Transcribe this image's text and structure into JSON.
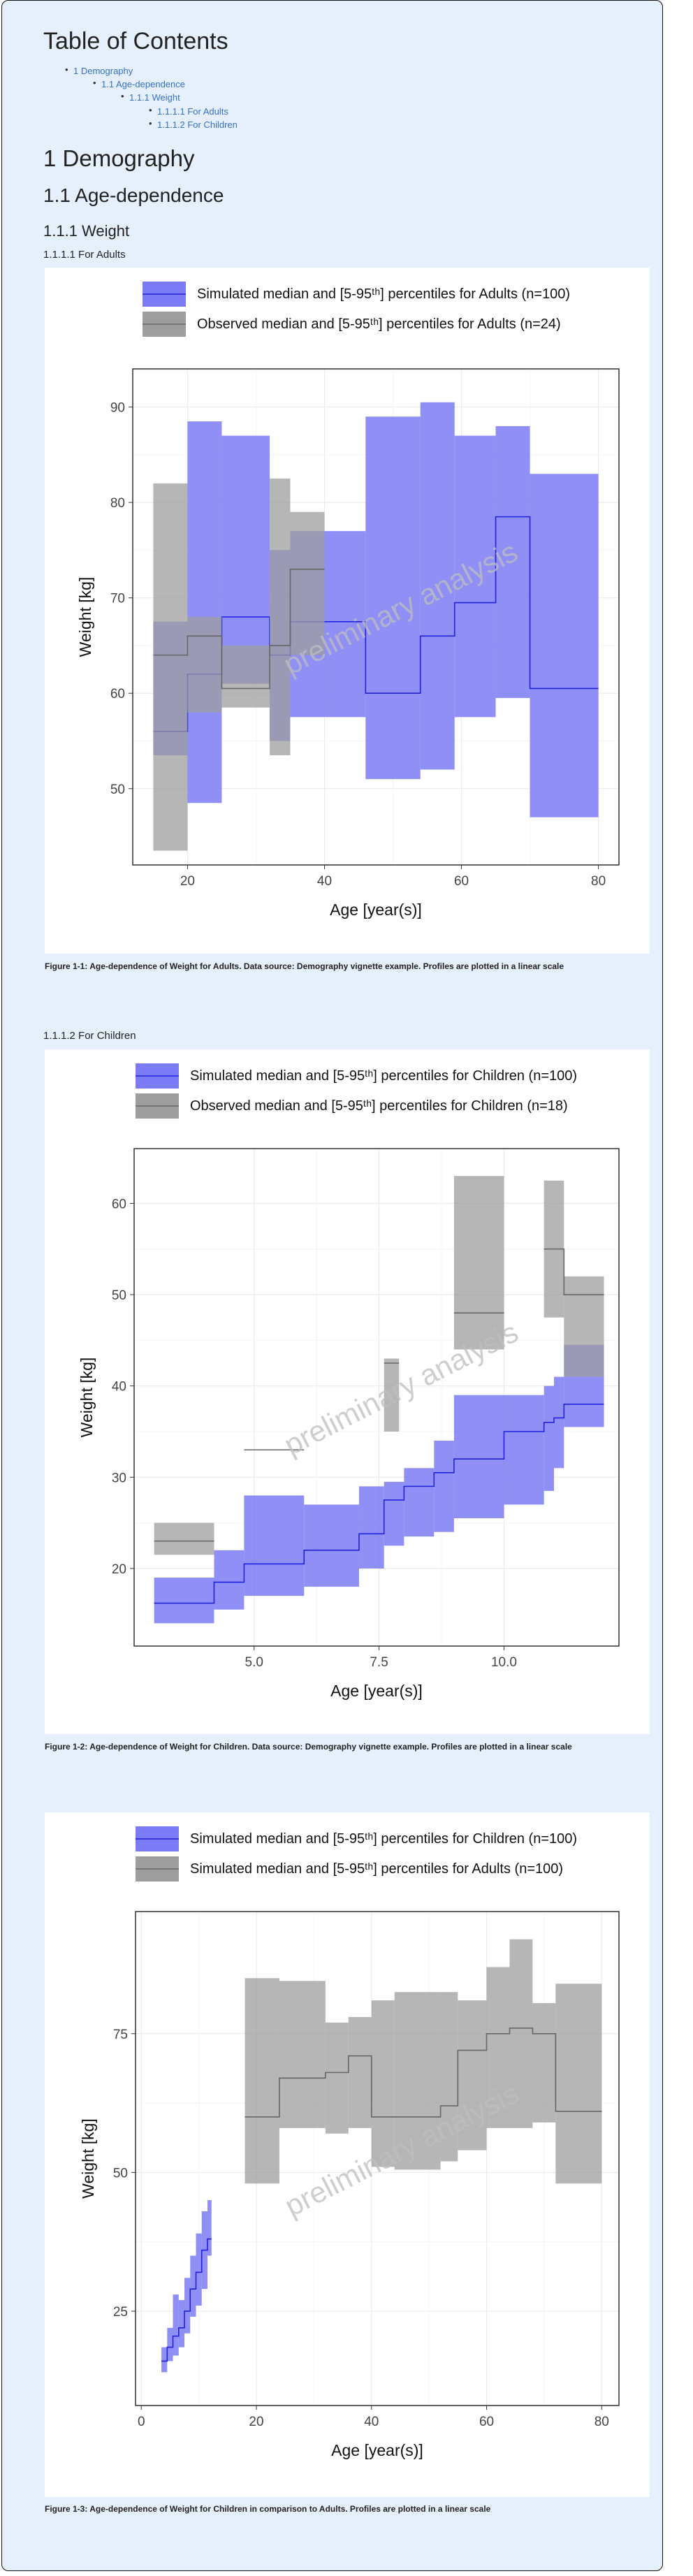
{
  "toc": {
    "title": "Table of Contents",
    "items": [
      "1 Demography",
      "1.1 Age-dependence",
      "1.1.1 Weight",
      "1.1.1.1 For Adults",
      "1.1.1.2 For Children"
    ]
  },
  "headings": {
    "h1": "1 Demography",
    "h2": "1.1 Age-dependence",
    "h3": "1.1.1 Weight",
    "h4_adults": "1.1.1.1 For Adults",
    "h4_children": "1.1.1.2 For Children"
  },
  "captions": [
    "Figure 1-1: Age-dependence of Weight for Adults. Data source: Demography vignette example. Profiles are plotted in a linear scale",
    "Figure 1-2: Age-dependence of Weight for Children. Data source: Demography vignette example. Profiles are plotted in a linear scale",
    "Figure 1-3: Age-dependence of Weight for Children in comparison to Adults. Profiles are plotted in a linear scale"
  ],
  "colors": {
    "simulated": "#7b7bf5",
    "simulated_line": "#2222dd",
    "observed": "#9e9e9e",
    "observed_line": "#666666"
  },
  "chart_data": [
    {
      "type": "area",
      "watermark": "preliminary analysis",
      "xlabel": "Age [year(s)]",
      "ylabel": "Weight [kg]",
      "xlim": [
        12,
        83
      ],
      "ylim": [
        42,
        94
      ],
      "xticks": [
        20,
        40,
        60,
        80
      ],
      "yticks": [
        50,
        60,
        70,
        80,
        90
      ],
      "grid": true,
      "legend_position": "top",
      "series": [
        {
          "name": "Simulated median and [5-95ᵗʰ] percentiles for Adults (n=100)",
          "kind": "simulated",
          "bins": [
            {
              "x0": 15,
              "x1": 20,
              "low": 53.5,
              "high": 67.5,
              "median": 56
            },
            {
              "x0": 20,
              "x1": 25,
              "low": 48.5,
              "high": 88.5,
              "median": 62
            },
            {
              "x0": 25,
              "x1": 32,
              "low": 61,
              "high": 87,
              "median": 68
            },
            {
              "x0": 32,
              "x1": 35,
              "low": 55,
              "high": 75,
              "median": 64
            },
            {
              "x0": 35,
              "x1": 40,
              "low": 57.5,
              "high": 77,
              "median": 67.5
            },
            {
              "x0": 40,
              "x1": 46,
              "low": 57.5,
              "high": 77,
              "median": 67.5
            },
            {
              "x0": 46,
              "x1": 54,
              "low": 51,
              "high": 89,
              "median": 60
            },
            {
              "x0": 54,
              "x1": 59,
              "low": 52,
              "high": 90.5,
              "median": 66
            },
            {
              "x0": 59,
              "x1": 65,
              "low": 57.5,
              "high": 87,
              "median": 69.5
            },
            {
              "x0": 65,
              "x1": 70,
              "low": 59.5,
              "high": 88,
              "median": 78.5
            },
            {
              "x0": 70,
              "x1": 80,
              "low": 47,
              "high": 83,
              "median": 60.5
            }
          ]
        },
        {
          "name": "Observed median and [5-95ᵗʰ] percentiles for Adults (n=24)",
          "kind": "observed",
          "bins": [
            {
              "x0": 15,
              "x1": 20,
              "low": 43.5,
              "high": 82,
              "median": 64
            },
            {
              "x0": 20,
              "x1": 25,
              "low": 58,
              "high": 68,
              "median": 66
            },
            {
              "x0": 25,
              "x1": 32,
              "low": 58.5,
              "high": 65,
              "median": 60.5
            },
            {
              "x0": 32,
              "x1": 35,
              "low": 53.5,
              "high": 82.5,
              "median": 65
            },
            {
              "x0": 35,
              "x1": 40,
              "low": 64,
              "high": 79,
              "median": 73
            }
          ]
        }
      ]
    },
    {
      "type": "area",
      "watermark": "preliminary analysis",
      "xlabel": "Age [year(s)]",
      "ylabel": "Weight [kg]",
      "xlim": [
        2.6,
        12.3
      ],
      "ylim": [
        11.5,
        66
      ],
      "xticks": [
        5.0,
        7.5,
        10.0
      ],
      "yticks": [
        20,
        30,
        40,
        50,
        60
      ],
      "grid": true,
      "legend_position": "top",
      "series": [
        {
          "name": "Simulated median and [5-95ᵗʰ] percentiles for Children (n=100)",
          "kind": "simulated",
          "bins": [
            {
              "x0": 3.0,
              "x1": 4.2,
              "low": 14,
              "high": 19,
              "median": 16.2
            },
            {
              "x0": 4.2,
              "x1": 4.8,
              "low": 15.5,
              "high": 22,
              "median": 18.5
            },
            {
              "x0": 4.8,
              "x1": 6.0,
              "low": 17,
              "high": 28,
              "median": 20.5
            },
            {
              "x0": 6.0,
              "x1": 7.1,
              "low": 18,
              "high": 27,
              "median": 22
            },
            {
              "x0": 7.1,
              "x1": 7.6,
              "low": 20,
              "high": 29,
              "median": 23.8
            },
            {
              "x0": 7.6,
              "x1": 8.0,
              "low": 22.5,
              "high": 29.5,
              "median": 27.5
            },
            {
              "x0": 8.0,
              "x1": 8.6,
              "low": 23.5,
              "high": 31,
              "median": 29
            },
            {
              "x0": 8.6,
              "x1": 9.0,
              "low": 24,
              "high": 34,
              "median": 30.5
            },
            {
              "x0": 9.0,
              "x1": 10.0,
              "low": 25.5,
              "high": 39,
              "median": 32
            },
            {
              "x0": 10.0,
              "x1": 10.8,
              "low": 27,
              "high": 39,
              "median": 35
            },
            {
              "x0": 10.8,
              "x1": 11.0,
              "low": 28.5,
              "high": 40,
              "median": 36
            },
            {
              "x0": 11.0,
              "x1": 11.2,
              "low": 31,
              "high": 41,
              "median": 36.5
            },
            {
              "x0": 11.2,
              "x1": 12.0,
              "low": 35.5,
              "high": 44.5,
              "median": 38
            }
          ]
        },
        {
          "name": "Observed median and [5-95ᵗʰ] percentiles for Children (n=18)",
          "kind": "observed",
          "bins": [
            {
              "x0": 3.0,
              "x1": 4.2,
              "low": 21.5,
              "high": 25,
              "median": 23
            },
            {
              "x0": 4.8,
              "x1": 6.0,
              "low": 33,
              "high": 33,
              "median": 33
            },
            {
              "x0": 7.6,
              "x1": 7.9,
              "low": 35,
              "high": 43,
              "median": 42.5
            },
            {
              "x0": 9.0,
              "x1": 10.0,
              "low": 44,
              "high": 63,
              "median": 48
            },
            {
              "x0": 10.8,
              "x1": 11.2,
              "low": 47.5,
              "high": 62.5,
              "median": 55
            },
            {
              "x0": 11.2,
              "x1": 12.0,
              "low": 41,
              "high": 52,
              "median": 50
            }
          ]
        }
      ]
    },
    {
      "type": "area",
      "watermark": "preliminary analysis",
      "xlabel": "Age [year(s)]",
      "ylabel": "Weight [kg]",
      "xlim": [
        -1,
        83
      ],
      "ylim": [
        8,
        97
      ],
      "xticks": [
        0,
        20,
        40,
        60,
        80
      ],
      "yticks": [
        25,
        50,
        75
      ],
      "grid": true,
      "legend_position": "top",
      "series": [
        {
          "name": "Simulated median and [5-95ᵗʰ] percentiles for Children (n=100)",
          "kind": "simulated",
          "bins": [
            {
              "x0": 3.5,
              "x1": 4.5,
              "low": 14,
              "high": 18.5,
              "median": 16
            },
            {
              "x0": 4.5,
              "x1": 5.5,
              "low": 16,
              "high": 22,
              "median": 18.5
            },
            {
              "x0": 5.5,
              "x1": 6.5,
              "low": 17,
              "high": 28,
              "median": 20.5
            },
            {
              "x0": 6.5,
              "x1": 7.5,
              "low": 18.5,
              "high": 27,
              "median": 22
            },
            {
              "x0": 7.5,
              "x1": 8.5,
              "low": 21,
              "high": 31,
              "median": 25
            },
            {
              "x0": 8.5,
              "x1": 9.5,
              "low": 24,
              "high": 35,
              "median": 29
            },
            {
              "x0": 9.5,
              "x1": 10.5,
              "low": 26,
              "high": 39,
              "median": 32
            },
            {
              "x0": 10.5,
              "x1": 11.5,
              "low": 29,
              "high": 43,
              "median": 36
            },
            {
              "x0": 11.5,
              "x1": 12.2,
              "low": 35,
              "high": 45,
              "median": 38
            }
          ]
        },
        {
          "name": "Simulated median and [5-95ᵗʰ] percentiles for Adults (n=100)",
          "kind": "observed",
          "bins": [
            {
              "x0": 18,
              "x1": 24,
              "low": 48,
              "high": 85,
              "median": 60
            },
            {
              "x0": 24,
              "x1": 32,
              "low": 58,
              "high": 84.5,
              "median": 67
            },
            {
              "x0": 32,
              "x1": 36,
              "low": 57,
              "high": 77,
              "median": 68
            },
            {
              "x0": 36,
              "x1": 40,
              "low": 58,
              "high": 78,
              "median": 71
            },
            {
              "x0": 40,
              "x1": 44,
              "low": 51,
              "high": 81,
              "median": 60
            },
            {
              "x0": 44,
              "x1": 52,
              "low": 50.5,
              "high": 82.5,
              "median": 60
            },
            {
              "x0": 52,
              "x1": 55,
              "low": 52,
              "high": 82.5,
              "median": 62
            },
            {
              "x0": 55,
              "x1": 60,
              "low": 54,
              "high": 81,
              "median": 72
            },
            {
              "x0": 60,
              "x1": 64,
              "low": 58,
              "high": 87,
              "median": 75
            },
            {
              "x0": 64,
              "x1": 68,
              "low": 58,
              "high": 92,
              "median": 76
            },
            {
              "x0": 68,
              "x1": 72,
              "low": 59,
              "high": 80.5,
              "median": 75
            },
            {
              "x0": 72,
              "x1": 80,
              "low": 48,
              "high": 84,
              "median": 61
            }
          ]
        }
      ]
    }
  ]
}
